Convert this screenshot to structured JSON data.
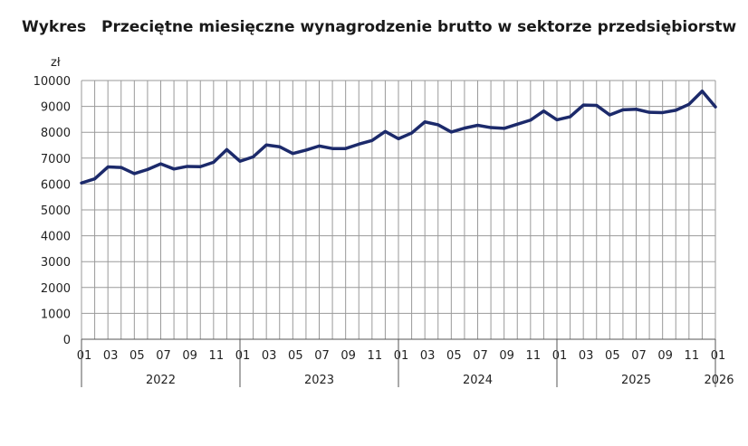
{
  "title_prefix": "Wykres",
  "title": "Przeciętne miesięczne wynagrodzenie brutto w sektorze przedsiębiorstw",
  "chart_data": {
    "type": "line",
    "ylabel": "zł",
    "ylim": [
      0,
      10000
    ],
    "yticks": [
      0,
      1000,
      2000,
      3000,
      4000,
      5000,
      6000,
      7000,
      8000,
      9000,
      10000
    ],
    "grid": true,
    "month_tick_labels": [
      "01",
      "03",
      "05",
      "07",
      "09",
      "11"
    ],
    "years": [
      "2022",
      "2023",
      "2024",
      "2025",
      "2026"
    ],
    "x": [
      "2022-01",
      "2022-02",
      "2022-03",
      "2022-04",
      "2022-05",
      "2022-06",
      "2022-07",
      "2022-08",
      "2022-09",
      "2022-10",
      "2022-11",
      "2022-12",
      "2023-01",
      "2023-02",
      "2023-03",
      "2023-04",
      "2023-05",
      "2023-06",
      "2023-07",
      "2023-08",
      "2023-09",
      "2023-10",
      "2023-11",
      "2023-12",
      "2024-01",
      "2024-02",
      "2024-03",
      "2024-04",
      "2024-05",
      "2024-06",
      "2024-07",
      "2024-08",
      "2024-09",
      "2024-10",
      "2024-11",
      "2024-12",
      "2025-01",
      "2025-02",
      "2025-03",
      "2025-04",
      "2025-05",
      "2025-06",
      "2025-07",
      "2025-08",
      "2025-09",
      "2025-10",
      "2025-11",
      "2025-12",
      "2026-01"
    ],
    "series": [
      {
        "color": "#1c2a6b",
        "values": [
          6040,
          6200,
          6660,
          6640,
          6400,
          6560,
          6780,
          6580,
          6680,
          6670,
          6840,
          7330,
          6880,
          7050,
          7510,
          7440,
          7180,
          7310,
          7470,
          7370,
          7370,
          7540,
          7680,
          8030,
          7750,
          7970,
          8400,
          8290,
          8010,
          8160,
          8270,
          8180,
          8150,
          8310,
          8470,
          8820,
          8480,
          8600,
          9050,
          9040,
          8670,
          8870,
          8890,
          8770,
          8760,
          8850,
          9080,
          9590,
          8980
        ]
      }
    ]
  }
}
